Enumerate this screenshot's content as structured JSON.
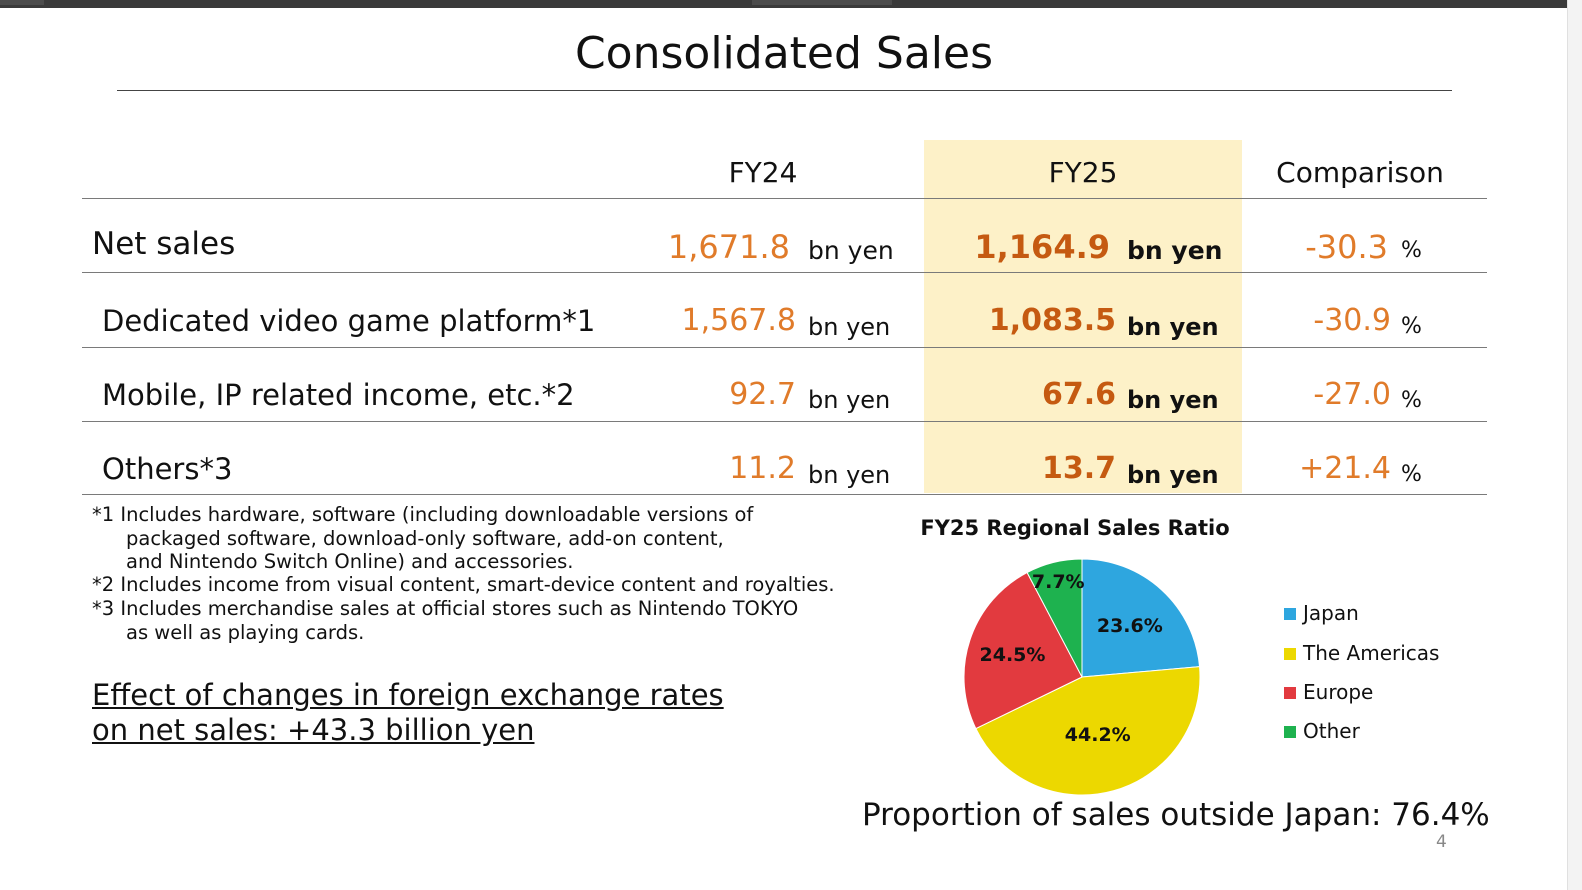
{
  "title": "Consolidated Sales",
  "columns": {
    "fy24": "FY24",
    "fy25": "FY25",
    "comparison": "Comparison"
  },
  "rows": [
    {
      "label": "Net sales",
      "fy24": "1,671.8",
      "fy24_unit": "bn yen",
      "fy25": "1,164.9",
      "fy25_unit": "bn yen",
      "comparison": "-30.3",
      "comparison_unit": "%"
    },
    {
      "label": "Dedicated video game platform*1",
      "fy24": "1,567.8",
      "fy24_unit": "bn yen",
      "fy25": "1,083.5",
      "fy25_unit": "bn yen",
      "comparison": "-30.9",
      "comparison_unit": "%"
    },
    {
      "label": "Mobile, IP related income, etc.*2",
      "fy24": "92.7",
      "fy24_unit": "bn yen",
      "fy25": "67.6",
      "fy25_unit": "bn yen",
      "comparison": "-27.0",
      "comparison_unit": "%"
    },
    {
      "label": "Others*3",
      "fy24": "11.2",
      "fy24_unit": "bn yen",
      "fy25": "13.7",
      "fy25_unit": "bn yen",
      "comparison": "+21.4",
      "comparison_unit": "%"
    }
  ],
  "footnotes": [
    "*1 Includes hardware, software (including downloadable versions of",
    "    packaged software, download-only software, add-on content,",
    "    and Nintendo Switch Online) and accessories.",
    "*2 Includes income from visual content, smart-device content and royalties.",
    "*3 Includes merchandise sales at official stores such as Nintendo TOKYO",
    "    as well as playing cards."
  ],
  "fx_effect": {
    "line1": "Effect of changes in foreign exchange rates",
    "line2": "on net sales: +43.3 billion yen"
  },
  "outside_japan": "Proportion of sales outside Japan: 76.4%",
  "page_number": "4",
  "colors": {
    "fy24_value": "#e07b2a",
    "fy25_value": "#c55a11",
    "fy25_highlight": "#fdf1c8"
  },
  "chart_data": {
    "type": "pie",
    "title": "FY25 Regional Sales Ratio",
    "slices": [
      {
        "name": "Japan",
        "value": 23.6,
        "label": "23.6%",
        "color": "#2ea6df"
      },
      {
        "name": "The Americas",
        "value": 44.2,
        "label": "44.2%",
        "color": "#ecd800"
      },
      {
        "name": "Europe",
        "value": 24.5,
        "label": "24.5%",
        "color": "#e23a3f"
      },
      {
        "name": "Other",
        "value": 7.7,
        "label": "7.7%",
        "color": "#1eb24f"
      }
    ],
    "legend_position": "right",
    "start": "12 o'clock",
    "direction": "clockwise"
  }
}
